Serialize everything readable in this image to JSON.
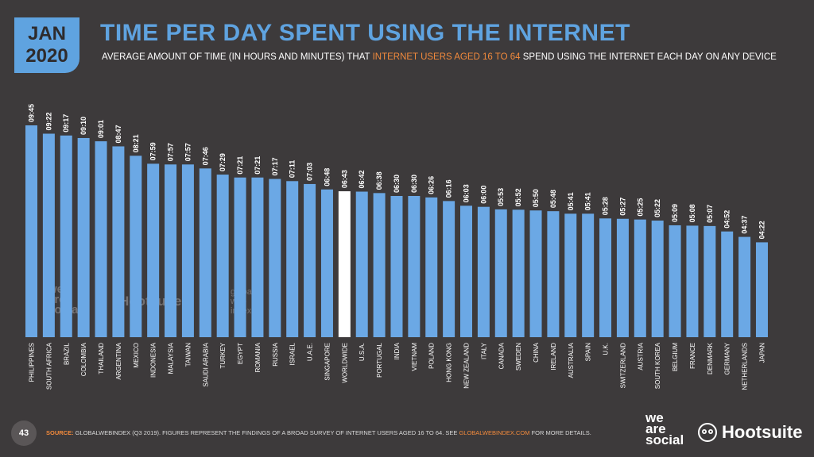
{
  "badge": {
    "month": "JAN",
    "year": "2020"
  },
  "title": "TIME PER DAY SPENT USING THE INTERNET",
  "subtitle": {
    "before": "AVERAGE AMOUNT OF TIME (IN HOURS AND MINUTES) THAT ",
    "highlight": "INTERNET USERS AGED 16 TO 64",
    "after": " SPEND USING THE INTERNET EACH DAY ON ANY DEVICE"
  },
  "footer": {
    "page_number": "43",
    "source_label": "SOURCE:",
    "source_text": " GLOBALWEBINDEX (Q3 2019). FIGURES REPRESENT THE FINDINGS OF A BROAD SURVEY OF INTERNET USERS AGED 16 TO 64. SEE ",
    "source_link": "GLOBALWEBINDEX.COM",
    "source_end": " FOR MORE DETAILS."
  },
  "logos": {
    "wearesocial": [
      "we",
      "are",
      "social"
    ],
    "hootsuite": "Hootsuite",
    "watermark_social": [
      "we",
      "are",
      "social"
    ],
    "watermark_hootsuite": "Hootsuite",
    "watermark_gwi": [
      "global",
      "web",
      "index"
    ]
  },
  "colors": {
    "background": "#3d3a3b",
    "bar": "#6ba8e5",
    "highlight_bar": "#ffffff",
    "title": "#5fa3e0",
    "accent": "#f28a3c"
  },
  "chart_data": {
    "type": "bar",
    "unit": "hours:minutes",
    "highlight": "WORLDWIDE",
    "categories": [
      "PHILIPPINES",
      "SOUTH AFRICA",
      "BRAZIL",
      "COLOMBIA",
      "THAILAND",
      "ARGENTINA",
      "MEXICO",
      "INDONESIA",
      "MALAYSIA",
      "TAIWAN",
      "SAUDI ARABIA",
      "TURKEY",
      "EGYPT",
      "ROMANIA",
      "RUSSIA",
      "ISRAEL",
      "U.A.E.",
      "SINGAPORE",
      "WORLDWIDE",
      "U.S.A.",
      "PORTUGAL",
      "INDIA",
      "VIETNAM",
      "POLAND",
      "HONG KONG",
      "NEW ZEALAND",
      "ITALY",
      "CANADA",
      "SWEDEN",
      "CHINA",
      "IRELAND",
      "AUSTRALIA",
      "SPAIN",
      "U.K.",
      "SWITZERLAND",
      "AUSTRIA",
      "SOUTH KOREA",
      "BELGIUM",
      "FRANCE",
      "DENMARK",
      "GERMANY",
      "NETHERLANDS",
      "JAPAN"
    ],
    "labels": [
      "09:45",
      "09:22",
      "09:17",
      "09:10",
      "09:01",
      "08:47",
      "08:21",
      "07:59",
      "07:57",
      "07:57",
      "07:46",
      "07:29",
      "07:21",
      "07:21",
      "07:17",
      "07:11",
      "07:03",
      "06:48",
      "06:43",
      "06:42",
      "06:38",
      "06:30",
      "06:30",
      "06:26",
      "06:16",
      "06:03",
      "06:00",
      "05:53",
      "05:52",
      "05:50",
      "05:48",
      "05:41",
      "05:41",
      "05:28",
      "05:27",
      "05:25",
      "05:22",
      "05:09",
      "05:08",
      "05:07",
      "04:52",
      "04:37",
      "04:22"
    ],
    "values_minutes": [
      585,
      562,
      557,
      550,
      541,
      527,
      501,
      479,
      477,
      477,
      466,
      449,
      441,
      441,
      437,
      431,
      423,
      408,
      403,
      402,
      398,
      390,
      390,
      386,
      376,
      363,
      360,
      353,
      352,
      350,
      348,
      341,
      341,
      328,
      327,
      325,
      322,
      309,
      308,
      307,
      292,
      277,
      262
    ]
  }
}
